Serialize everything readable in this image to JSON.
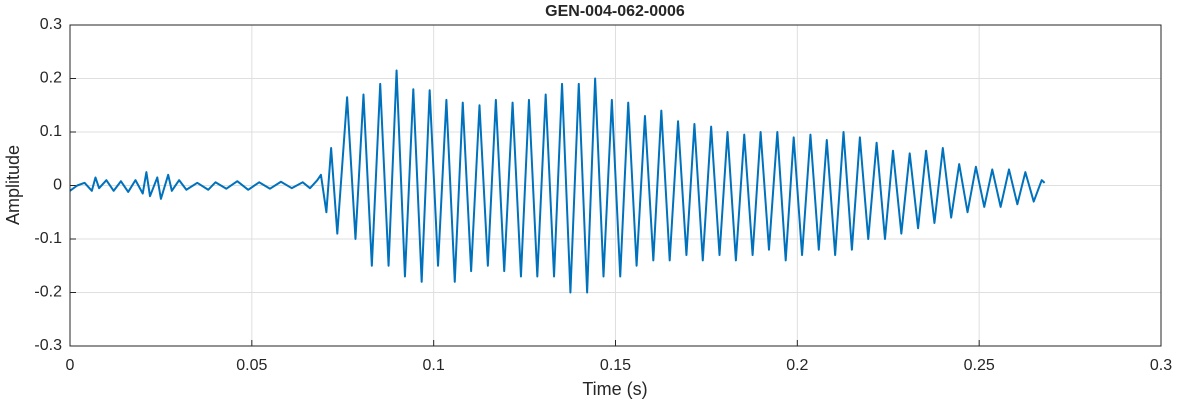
{
  "chart_data": {
    "type": "line",
    "title": "GEN-004-062-0006",
    "xlabel": "Time (s)",
    "ylabel": "Amplitude",
    "color": "#0072bd",
    "grid": true,
    "xlim": [
      0,
      0.3
    ],
    "xticks": [
      0,
      0.05,
      0.1,
      0.15,
      0.2,
      0.25,
      0.3
    ],
    "ylim": [
      -0.3,
      0.3
    ],
    "yticks": [
      -0.3,
      -0.2,
      -0.1,
      0,
      0.1,
      0.2,
      0.3
    ],
    "x": [
      0,
      0.002,
      0.004,
      0.006,
      0.007,
      0.008,
      0.01,
      0.012,
      0.014,
      0.016,
      0.018,
      0.02,
      0.021,
      0.022,
      0.024,
      0.025,
      0.027,
      0.028,
      0.03,
      0.032,
      0.035,
      0.038,
      0.04,
      0.043,
      0.046,
      0.049,
      0.052,
      0.055,
      0.058,
      0.061,
      0.064,
      0.066,
      0.068,
      0.069,
      0.0705,
      0.0718,
      0.0735,
      0.0762,
      0.0785,
      0.0807,
      0.083,
      0.0853,
      0.0876,
      0.0898,
      0.0921,
      0.0944,
      0.0967,
      0.0989,
      0.1012,
      0.1035,
      0.1058,
      0.108,
      0.1103,
      0.1126,
      0.1149,
      0.1171,
      0.1194,
      0.1217,
      0.124,
      0.1262,
      0.1285,
      0.1308,
      0.1331,
      0.1353,
      0.1376,
      0.1399,
      0.1422,
      0.1444,
      0.1467,
      0.149,
      0.1513,
      0.1535,
      0.1558,
      0.1581,
      0.1604,
      0.1626,
      0.1649,
      0.1672,
      0.1695,
      0.1717,
      0.174,
      0.1763,
      0.1786,
      0.1808,
      0.1831,
      0.1854,
      0.1877,
      0.1899,
      0.1922,
      0.1945,
      0.1968,
      0.199,
      0.2013,
      0.2036,
      0.2059,
      0.2081,
      0.2104,
      0.2127,
      0.215,
      0.2172,
      0.2195,
      0.2218,
      0.2241,
      0.2263,
      0.2286,
      0.2309,
      0.2332,
      0.2354,
      0.2377,
      0.24,
      0.2423,
      0.2445,
      0.2468,
      0.2491,
      0.2514,
      0.2536,
      0.2559,
      0.2582,
      0.2605,
      0.2627,
      0.265,
      0.2672,
      0.268
    ],
    "values": [
      -0.01,
      0,
      0.005,
      -0.01,
      0.015,
      -0.005,
      0.01,
      -0.01,
      0.008,
      -0.012,
      0.01,
      -0.015,
      0.025,
      -0.02,
      0.015,
      -0.025,
      0.02,
      -0.01,
      0.01,
      -0.008,
      0.005,
      -0.008,
      0.006,
      -0.006,
      0.008,
      -0.008,
      0.006,
      -0.006,
      0.007,
      -0.005,
      0.006,
      -0.005,
      0.01,
      0.02,
      -0.05,
      0.07,
      -0.09,
      0.165,
      -0.1,
      0.17,
      -0.15,
      0.19,
      -0.15,
      0.215,
      -0.17,
      0.18,
      -0.18,
      0.178,
      -0.15,
      0.16,
      -0.18,
      0.155,
      -0.16,
      0.15,
      -0.15,
      0.16,
      -0.16,
      0.155,
      -0.17,
      0.16,
      -0.17,
      0.17,
      -0.17,
      0.19,
      -0.2,
      0.19,
      -0.2,
      0.2,
      -0.17,
      0.16,
      -0.17,
      0.155,
      -0.15,
      0.13,
      -0.14,
      0.14,
      -0.14,
      0.12,
      -0.13,
      0.115,
      -0.14,
      0.11,
      -0.13,
      0.1,
      -0.14,
      0.095,
      -0.13,
      0.1,
      -0.12,
      0.1,
      -0.14,
      0.09,
      -0.13,
      0.095,
      -0.12,
      0.085,
      -0.13,
      0.1,
      -0.12,
      0.09,
      -0.1,
      0.08,
      -0.1,
      0.065,
      -0.09,
      0.06,
      -0.08,
      0.065,
      -0.07,
      0.07,
      -0.06,
      0.04,
      -0.05,
      0.035,
      -0.04,
      0.03,
      -0.04,
      0.03,
      -0.035,
      0.025,
      -0.03,
      0.01,
      0.005
    ]
  }
}
